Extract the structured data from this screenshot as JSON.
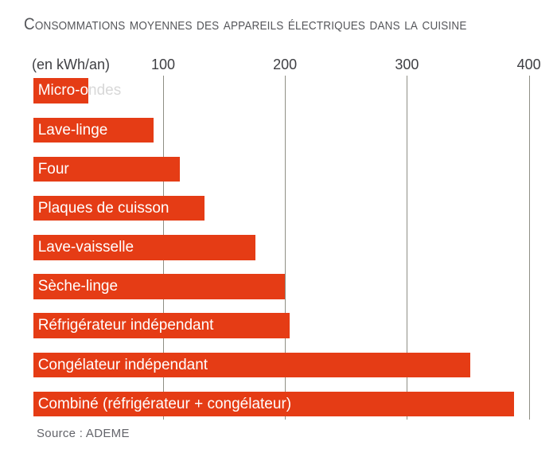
{
  "title": "Consommations moyennes des appareils électriques dans la cuisine",
  "axis": {
    "unit_label": "(en kWh/an)",
    "ticks": [
      100,
      200,
      300,
      400
    ]
  },
  "source": {
    "label": "Source : ADEME"
  },
  "colors": {
    "bar": "#e53c15",
    "bar_label": "#ffffff",
    "spill_label": "#d8d8d8",
    "gridline": "#8f8f85",
    "title": "#55565a",
    "tick": "#3e3f43",
    "source": "#63646a"
  },
  "chart_data": {
    "type": "bar",
    "orientation": "horizontal",
    "title": "Consommations moyennes des appareils électriques dans la cuisine",
    "xlabel": "(en kWh/an)",
    "unit": "kWh/an",
    "xlim": [
      0,
      420
    ],
    "x_ticks": [
      100,
      200,
      300,
      400
    ],
    "grid": "vertical",
    "legend": "none",
    "categories": [
      "Micro-ondes",
      "Lave-linge",
      "Four",
      "Plaques de cuisson",
      "Lave-vaisselle",
      "Sèche-linge",
      "Réfrigérateur indépendant",
      "Congélateur indépendant",
      "Combiné (réfrigérateur + congélateur)"
    ],
    "values": [
      39,
      92,
      114,
      134,
      176,
      200,
      204,
      352,
      388
    ],
    "source": "Source : ADEME"
  }
}
